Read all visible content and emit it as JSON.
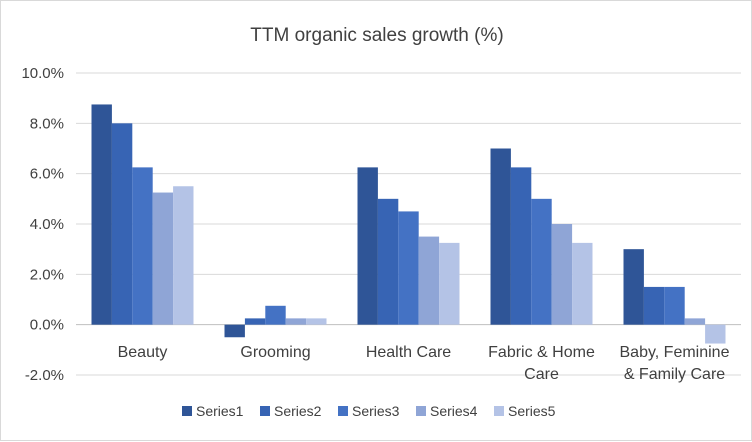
{
  "chart_data": {
    "type": "bar",
    "title": "TTM organic sales growth (%)",
    "xlabel": "",
    "ylabel": "",
    "categories": [
      [
        "Beauty"
      ],
      [
        "Grooming"
      ],
      [
        "Health Care"
      ],
      [
        "Fabric & Home",
        "Care"
      ],
      [
        "Baby, Feminine",
        "& Family Care"
      ]
    ],
    "series": [
      {
        "name": "Series1",
        "color": "#2f5597",
        "values": [
          8.75,
          -0.5,
          6.25,
          7.0,
          3.0
        ]
      },
      {
        "name": "Series2",
        "color": "#3764b4",
        "values": [
          8.0,
          0.25,
          5.0,
          6.25,
          1.5
        ]
      },
      {
        "name": "Series3",
        "color": "#4472c4",
        "values": [
          6.25,
          0.75,
          4.5,
          5.0,
          1.5
        ]
      },
      {
        "name": "Series4",
        "color": "#8fa5d6",
        "values": [
          5.25,
          0.25,
          3.5,
          4.0,
          0.25
        ]
      },
      {
        "name": "Series5",
        "color": "#b4c3e6",
        "values": [
          5.5,
          0.25,
          3.25,
          3.25,
          -0.75
        ]
      }
    ],
    "ylim": [
      -2.0,
      10.0
    ],
    "yticks": [
      "-2.0%",
      "0.0%",
      "2.0%",
      "4.0%",
      "6.0%",
      "8.0%",
      "10.0%"
    ],
    "grid": true,
    "legend": "bottom"
  }
}
